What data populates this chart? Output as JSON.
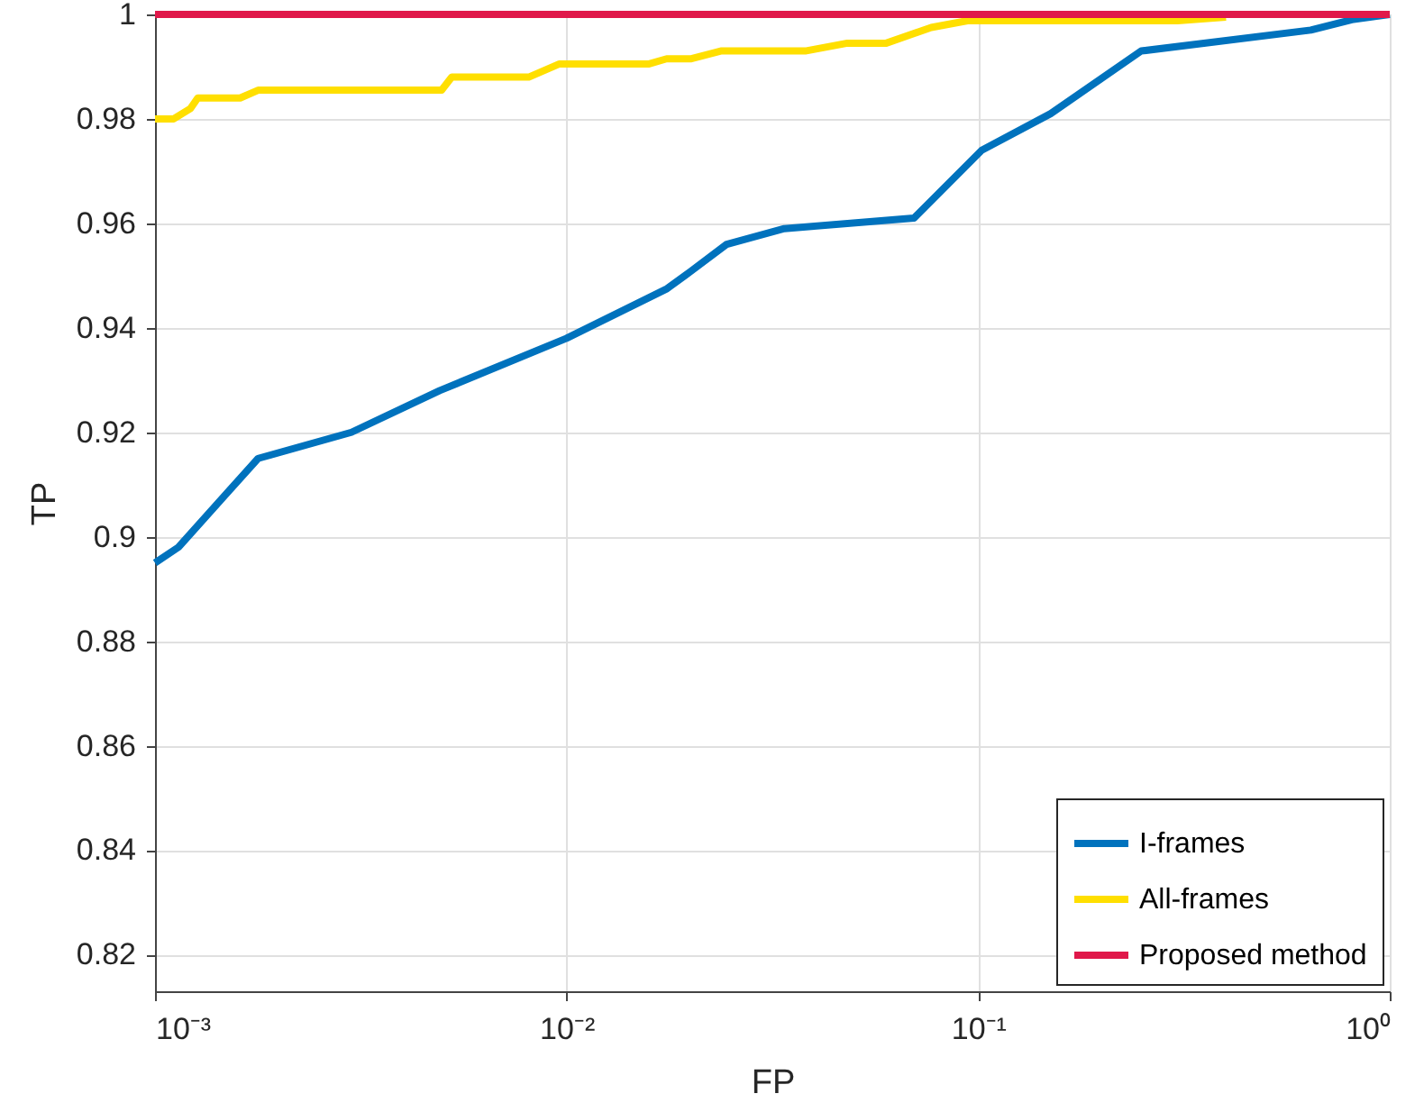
{
  "chart_data": {
    "type": "line",
    "xlabel": "FP",
    "ylabel": "TP",
    "log": "x",
    "grid": true,
    "legend": "bottom right",
    "line_style": "solid",
    "xlim": [
      0.001,
      1
    ],
    "ylim": [
      0.813,
      1
    ],
    "xticks": [
      {
        "value": 0.001,
        "label": "10⁻³"
      },
      {
        "value": 0.01,
        "label": "10⁻²"
      },
      {
        "value": 0.1,
        "label": "10⁻¹"
      },
      {
        "value": 1,
        "label": "10⁰"
      }
    ],
    "yticks": [
      0.82,
      0.84,
      0.86,
      0.88,
      0.9,
      0.92,
      0.94,
      0.96,
      0.98,
      1
    ],
    "series": [
      {
        "name": "I-frames",
        "color": "#0072bd",
        "x": [
          0.001,
          0.00114,
          0.00178,
          0.003,
          0.00492,
          0.01,
          0.01754,
          0.0194,
          0.0245,
          0.0338,
          0.0698,
          0.102,
          0.15,
          0.249,
          0.643,
          0.809,
          1
        ],
        "values": [
          0.895,
          0.898,
          0.915,
          0.92,
          0.928,
          0.938,
          0.9475,
          0.95,
          0.956,
          0.959,
          0.961,
          0.974,
          0.981,
          0.993,
          0.997,
          0.999,
          1.0
        ]
      },
      {
        "name": "All-frames",
        "color": "#ffdf00",
        "x": [
          0.001,
          0.00111,
          0.00122,
          0.00127,
          0.00161,
          0.00178,
          0.00497,
          0.00526,
          0.00809,
          0.00958,
          0.0158,
          0.0175,
          0.02,
          0.0237,
          0.038,
          0.0481,
          0.0598,
          0.0769,
          0.0942,
          0.305,
          0.4
        ],
        "values": [
          0.98,
          0.98,
          0.982,
          0.984,
          0.984,
          0.9855,
          0.9855,
          0.988,
          0.988,
          0.9905,
          0.9905,
          0.9915,
          0.9915,
          0.993,
          0.993,
          0.9945,
          0.9945,
          0.9975,
          0.9988,
          0.9988,
          0.9995
        ]
      },
      {
        "name": "Proposed method",
        "color": "#e0184a",
        "x": [
          0.001,
          1
        ],
        "values": [
          1.0,
          1.0
        ]
      }
    ]
  }
}
